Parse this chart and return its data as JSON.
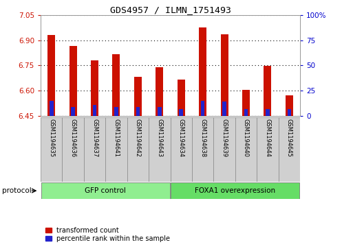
{
  "title": "GDS4957 / ILMN_1751493",
  "samples": [
    "GSM1194635",
    "GSM1194636",
    "GSM1194637",
    "GSM1194641",
    "GSM1194642",
    "GSM1194643",
    "GSM1194634",
    "GSM1194638",
    "GSM1194639",
    "GSM1194640",
    "GSM1194644",
    "GSM1194645"
  ],
  "transformed_count": [
    6.93,
    6.865,
    6.78,
    6.815,
    6.68,
    6.74,
    6.665,
    6.975,
    6.935,
    6.605,
    6.748,
    6.57
  ],
  "percentile_rank_pct": [
    14.5,
    9.0,
    11.0,
    9.0,
    9.0,
    9.0,
    6.5,
    14.5,
    14.0,
    6.5,
    6.5,
    6.5
  ],
  "ylim_left": [
    6.45,
    7.05
  ],
  "ylim_right": [
    0,
    100
  ],
  "yticks_left": [
    6.45,
    6.6,
    6.75,
    6.9,
    7.05
  ],
  "yticks_right": [
    0,
    25,
    50,
    75,
    100
  ],
  "bar_base": 6.45,
  "red_bar_width": 0.35,
  "blue_bar_width": 0.18,
  "red_color": "#cc1100",
  "blue_color": "#2222cc",
  "group1_label": "GFP control",
  "group2_label": "FOXA1 overexpression",
  "group1_color": "#90EE90",
  "group2_color": "#66DD66",
  "group1_indices": [
    0,
    1,
    2,
    3,
    4,
    5
  ],
  "group2_indices": [
    6,
    7,
    8,
    9,
    10,
    11
  ],
  "legend_red": "transformed count",
  "legend_blue": "percentile rank within the sample",
  "bg_color": "#ffffff",
  "tick_color_left": "#cc1100",
  "tick_color_right": "#0000cc",
  "grid_color": "#000000",
  "spine_color": "#999999",
  "label_box_color": "#d0d0d0",
  "protocol_text": "protocol"
}
